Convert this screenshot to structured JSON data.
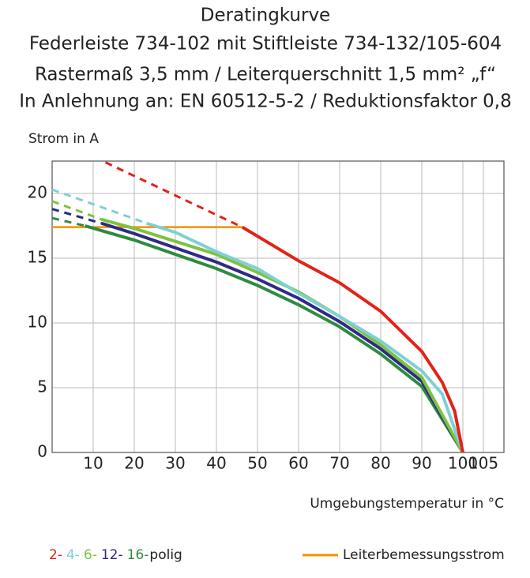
{
  "chart_data": {
    "type": "line",
    "title": [
      "Deratingkurve",
      "Federleiste 734-102 mit Stiftleiste 734-132/105-604",
      "Rastermaß 3,5 mm / Leiterquerschnitt 1,5 mm² „f“",
      "In Anlehnung an: EN 60512-5-2 / Reduktionsfaktor 0,8"
    ],
    "y_label": "Strom in A",
    "x_label": "Umgebungstemperatur in °C",
    "xlim": [
      0,
      110
    ],
    "xticks": [
      10,
      20,
      30,
      40,
      50,
      60,
      70,
      80,
      90,
      100,
      105
    ],
    "ylim": [
      0,
      22.5
    ],
    "yticks": [
      0,
      5,
      10,
      15,
      20
    ],
    "grid": true,
    "legend_suffix": "polig",
    "series": [
      {
        "name": "2-",
        "color": "#e2231a",
        "x": [
          46.3,
          60,
          70,
          80,
          90,
          95,
          98,
          100
        ],
        "values": [
          17.4,
          14.8,
          13.1,
          10.9,
          7.8,
          5.4,
          3.2,
          0
        ],
        "dashed_x": [
          13,
          46.3
        ],
        "dashed_values": [
          22.4,
          17.4
        ]
      },
      {
        "name": "4-",
        "color": "#7fd0d4",
        "x": [
          23,
          30,
          40,
          50,
          60,
          70,
          80,
          90,
          95,
          100
        ],
        "values": [
          17.7,
          17.0,
          15.5,
          14.2,
          12.3,
          10.5,
          8.6,
          6.3,
          4.5,
          0
        ],
        "dashed_x": [
          0,
          23
        ],
        "dashed_values": [
          20.3,
          17.7
        ]
      },
      {
        "name": "6-",
        "color": "#7dc242",
        "x": [
          12,
          20,
          30,
          40,
          50,
          60,
          70,
          80,
          90,
          100
        ],
        "values": [
          18.0,
          17.3,
          16.3,
          15.3,
          13.9,
          12.4,
          10.5,
          8.3,
          5.8,
          0
        ],
        "dashed_x": [
          0,
          12
        ],
        "dashed_values": [
          19.4,
          18.0
        ]
      },
      {
        "name": "12-",
        "color": "#2e2a86",
        "x": [
          12,
          20,
          30,
          40,
          50,
          60,
          70,
          80,
          90,
          100
        ],
        "values": [
          17.7,
          16.9,
          15.8,
          14.7,
          13.4,
          11.9,
          10.1,
          8.0,
          5.5,
          0
        ],
        "dashed_x": [
          0,
          12
        ],
        "dashed_values": [
          18.8,
          17.7
        ]
      },
      {
        "name": "16-",
        "color": "#2e8b3e",
        "x": [
          8,
          20,
          30,
          40,
          50,
          60,
          70,
          80,
          90,
          100
        ],
        "values": [
          17.5,
          16.4,
          15.3,
          14.2,
          12.9,
          11.4,
          9.7,
          7.6,
          5.1,
          0
        ],
        "dashed_x": [
          0,
          8
        ],
        "dashed_values": [
          18.1,
          17.5
        ]
      },
      {
        "name": "Leiterbemessungsstrom",
        "color": "#f39200",
        "x": [
          0,
          46.3
        ],
        "values": [
          17.4,
          17.4
        ]
      }
    ]
  }
}
